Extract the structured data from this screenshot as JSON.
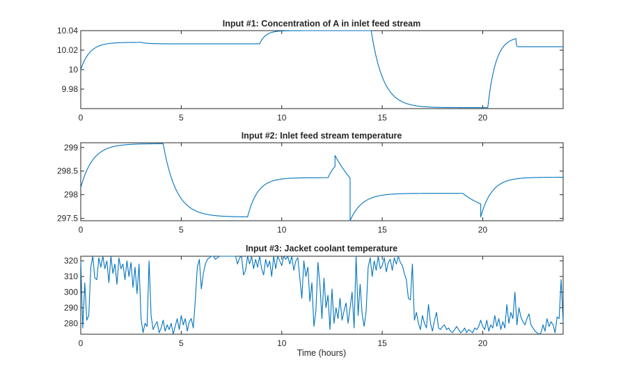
{
  "colors": {
    "series": "#0072bd",
    "axes": "#262626",
    "background": "#ffffff"
  },
  "chart_data": [
    {
      "type": "line",
      "title": "Input #1: Concentration of A in inlet feed stream",
      "xlabel": "",
      "ylabel": "",
      "xlim": [
        0,
        24
      ],
      "ylim": [
        9.96,
        10.04
      ],
      "xticks": [
        0,
        5,
        10,
        15,
        20
      ],
      "xtick_labels": [
        "0",
        "5",
        "10",
        "15",
        "20"
      ],
      "yticks": [
        9.98,
        10,
        10.02,
        10.04
      ],
      "ytick_labels": [
        "9.98",
        "10",
        "10.02",
        "10.04"
      ],
      "series": [
        {
          "name": "Input #1",
          "segments": [
            {
              "t0": 0,
              "t1": 3,
              "from": 10.0,
              "to": 10.028,
              "tau": 0.45
            },
            {
              "t0": 3,
              "t1": 4,
              "from": 10.028,
              "to": 10.0265,
              "tau": 0.3
            },
            {
              "t0": 4,
              "t1": 8.9,
              "from": 10.0265,
              "to": 10.0265,
              "tau": 0.3
            },
            {
              "t0": 8.9,
              "t1": 14.45,
              "from": 10.0265,
              "to": 10.04,
              "tau": 0.3
            },
            {
              "t0": 14.45,
              "t1": 20.25,
              "from": 10.04,
              "to": 9.961,
              "tau": 0.6
            },
            {
              "t0": 20.25,
              "t1": 21.65,
              "from": 9.961,
              "to": 10.034,
              "tau": 0.4
            },
            {
              "t0": 21.65,
              "t1": 24,
              "from": 10.031,
              "to": 10.0235,
              "tau": 0.02
            }
          ]
        }
      ]
    },
    {
      "type": "line",
      "title": "Input #2: Inlet feed stream temperature",
      "xlabel": "",
      "ylabel": "",
      "xlim": [
        0,
        24
      ],
      "ylim": [
        297.45,
        299.1
      ],
      "xticks": [
        0,
        5,
        10,
        15,
        20
      ],
      "xtick_labels": [
        "0",
        "5",
        "10",
        "15",
        "20"
      ],
      "yticks": [
        297.5,
        298,
        298.5,
        299
      ],
      "ytick_labels": [
        "297.5",
        "298",
        "298.5",
        "299"
      ],
      "series": [
        {
          "name": "Input #2",
          "segments": [
            {
              "t0": 0,
              "t1": 4.1,
              "from": 298.15,
              "to": 299.08,
              "tau": 0.6
            },
            {
              "t0": 4.1,
              "t1": 8.3,
              "from": 299.08,
              "to": 297.53,
              "tau": 0.65
            },
            {
              "t0": 8.3,
              "t1": 12.3,
              "from": 297.53,
              "to": 298.36,
              "tau": 0.5
            },
            {
              "t0": 12.3,
              "t1": 12.65,
              "from": 298.36,
              "to": 298.83,
              "tau": 0.5
            },
            {
              "t0": 12.65,
              "t1": 13.4,
              "from": 298.83,
              "to": 297.43,
              "tau": 1.8
            },
            {
              "t0": 13.4,
              "t1": 19.0,
              "from": 297.45,
              "to": 298.03,
              "tau": 0.6
            },
            {
              "t0": 19.0,
              "t1": 19.9,
              "from": 298.03,
              "to": 297.53,
              "tau": 1.5
            },
            {
              "t0": 19.9,
              "t1": 24,
              "from": 297.53,
              "to": 298.37,
              "tau": 0.55
            }
          ]
        }
      ]
    },
    {
      "type": "line",
      "title": "Input #3: Jacket coolant temperature",
      "xlabel": "Time (hours)",
      "ylabel": "",
      "xlim": [
        0,
        24
      ],
      "ylim": [
        273,
        323
      ],
      "xticks": [
        0,
        5,
        10,
        15,
        20
      ],
      "xtick_labels": [
        "0",
        "5",
        "10",
        "15",
        "20"
      ],
      "yticks": [
        280,
        290,
        300,
        310,
        320
      ],
      "ytick_labels": [
        "280",
        "290",
        "300",
        "310",
        "320"
      ],
      "series": [
        {
          "name": "Input #3",
          "dt": 0.1,
          "values": [
            320,
            277,
            306,
            282,
            285,
            316,
            323,
            309,
            308,
            322,
            316,
            323,
            315,
            320,
            306,
            323,
            312,
            318,
            305,
            322,
            315,
            318,
            308,
            320,
            310,
            319,
            303,
            316,
            299,
            318,
            283,
            274,
            280,
            278,
            320,
            285,
            276,
            279,
            281,
            274,
            277,
            282,
            275,
            279,
            276,
            280,
            273,
            278,
            283,
            276,
            285,
            279,
            283,
            275,
            281,
            283,
            277,
            295,
            316,
            321,
            302,
            312,
            318,
            321,
            322,
            323,
            323,
            321,
            322,
            323,
            323,
            323,
            323,
            323,
            323,
            323,
            323,
            323,
            318,
            322,
            323,
            311,
            314,
            323,
            318,
            323,
            315,
            321,
            316,
            323,
            315,
            311,
            321,
            316,
            320,
            310,
            323,
            315,
            323,
            320,
            317,
            323,
            321,
            323,
            318,
            323,
            314,
            320,
            322,
            309,
            296,
            320,
            310,
            316,
            294,
            306,
            278,
            288,
            319,
            305,
            283,
            309,
            290,
            298,
            276,
            302,
            280,
            290,
            283,
            296,
            282,
            288,
            293,
            280,
            290,
            300,
            277,
            323,
            285,
            305,
            286,
            278,
            288,
            316,
            322,
            310,
            320,
            314,
            323,
            315,
            317,
            322,
            313,
            319,
            321,
            314,
            322,
            318,
            323,
            319,
            317,
            312,
            308,
            296,
            295,
            318,
            282,
            287,
            280,
            276,
            285,
            280,
            277,
            292,
            280,
            275,
            282,
            287,
            277,
            276,
            278,
            279,
            276,
            277,
            275,
            274,
            276,
            278,
            276,
            274,
            275,
            277,
            274,
            276,
            275,
            274,
            277,
            276,
            278,
            282,
            278,
            276,
            282,
            275,
            279,
            277,
            285,
            278,
            283,
            276,
            281,
            277,
            292,
            280,
            287,
            283,
            300,
            279,
            290,
            284,
            281,
            279,
            283,
            286,
            279,
            277,
            275,
            274,
            273,
            274,
            279,
            275,
            283,
            278,
            281,
            279,
            274,
            284,
            283,
            308,
            281
          ]
        }
      ]
    }
  ]
}
